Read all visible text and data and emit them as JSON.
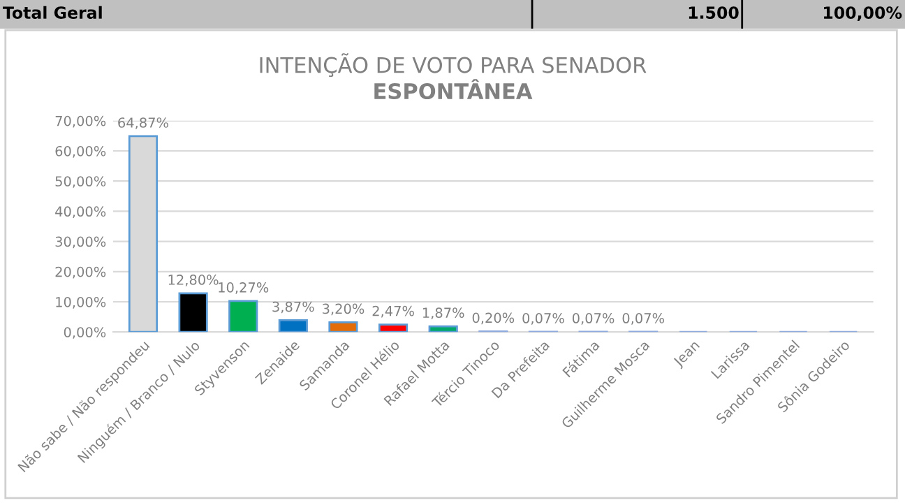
{
  "chart_data": {
    "type": "bar",
    "title": "INTENÇÃO DE VOTO PARA SENADOR",
    "subtitle": "ESPONTÂNEA",
    "annotations": [
      "Total Geral",
      "1.500",
      "100,00%"
    ],
    "categories": [
      "Não sabe / Não respondeu",
      "Ninguém / Branco / Nulo",
      "Styvenson",
      "Zenaide",
      "Samanda",
      "Coronel Hélio",
      "Rafael Motta",
      "Tércio Tinoco",
      "Da Prefeita",
      "Fátima",
      "Guilherme Mosca",
      "Jean",
      "Larissa",
      "Sandro Pimentel",
      "Sônia Godeiro"
    ],
    "values": [
      64.87,
      12.8,
      10.27,
      3.87,
      3.2,
      2.47,
      1.87,
      0.2,
      0.07,
      0.07,
      0.07,
      0,
      0,
      0,
      0
    ],
    "value_labels": [
      "64,87%",
      "12,80%",
      "10,27%",
      "3,87%",
      "3,20%",
      "2,47%",
      "1,87%",
      "0,20%",
      "0,07%",
      "0,07%",
      "0,07%",
      null,
      null,
      null,
      null
    ],
    "colors": [
      "#d9d9d9",
      "#000000",
      "#00b050",
      "#0070c0",
      "#e36c09",
      "#ff0000",
      "#00a86b",
      "#8faadc",
      "#8faadc",
      "#8faadc",
      "#8faadc",
      "#8faadc",
      "#8faadc",
      "#8faadc",
      "#8faadc"
    ],
    "ylim": [
      0,
      70
    ],
    "yticks": [
      {
        "value": 0,
        "label": "0,00%"
      },
      {
        "value": 10,
        "label": "10,00%"
      },
      {
        "value": 20,
        "label": "20,00%"
      },
      {
        "value": 30,
        "label": "30,00%"
      },
      {
        "value": 40,
        "label": "40,00%"
      },
      {
        "value": 50,
        "label": "50,00%"
      },
      {
        "value": 60,
        "label": "60,00%"
      },
      {
        "value": 70,
        "label": "70,00%"
      }
    ],
    "grid": "y"
  }
}
